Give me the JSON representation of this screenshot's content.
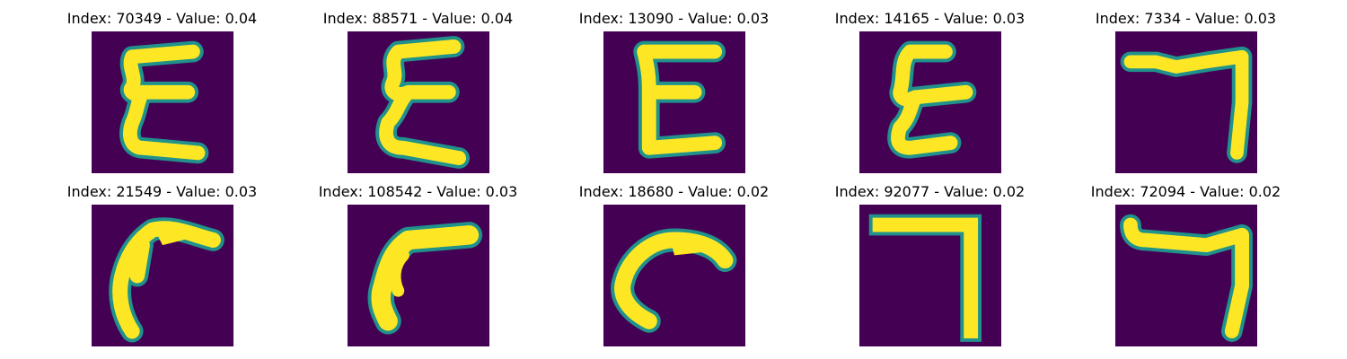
{
  "colors": {
    "background": "#440154",
    "stroke": "#fde725",
    "edge": "#21918c"
  },
  "panels": [
    {
      "title": "Index: 70349 - Value: 0.04",
      "glyph": "epsilon"
    },
    {
      "title": "Index: 88571 - Value: 0.04",
      "glyph": "epsilon"
    },
    {
      "title": "Index: 13090 - Value: 0.03",
      "glyph": "epsilon"
    },
    {
      "title": "Index: 14165 - Value: 0.03",
      "glyph": "epsilon"
    },
    {
      "title": "Index: 7334 - Value: 0.03",
      "glyph": "hook"
    },
    {
      "title": "Index: 21549 - Value: 0.03",
      "glyph": "curve"
    },
    {
      "title": "Index: 108542 - Value: 0.03",
      "glyph": "curve"
    },
    {
      "title": "Index: 18680 - Value: 0.02",
      "glyph": "curve"
    },
    {
      "title": "Index: 92077 - Value: 0.02",
      "glyph": "hook"
    },
    {
      "title": "Index: 72094 - Value: 0.02",
      "glyph": "hook"
    }
  ]
}
